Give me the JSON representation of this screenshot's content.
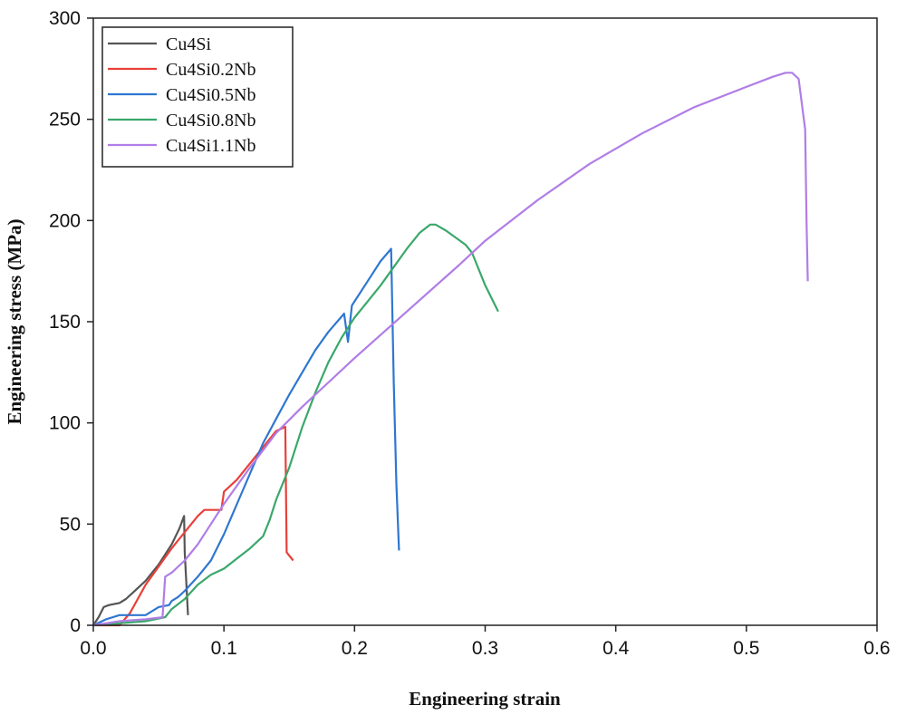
{
  "chart_data": {
    "type": "line",
    "xlabel": "Engineering strain",
    "ylabel": "Engineering stress (MPa)",
    "xlim": [
      0.0,
      0.6
    ],
    "ylim": [
      0,
      300
    ],
    "xticks": [
      "0.0",
      "0.1",
      "0.2",
      "0.3",
      "0.4",
      "0.5",
      "0.6"
    ],
    "yticks": [
      "0",
      "50",
      "100",
      "150",
      "200",
      "250",
      "300"
    ],
    "grid": false,
    "legend": "top-left",
    "series": [
      {
        "name": "Cu4Si",
        "color": "#555555",
        "points": [
          [
            0.0,
            0
          ],
          [
            0.004,
            4
          ],
          [
            0.008,
            9
          ],
          [
            0.012,
            10
          ],
          [
            0.02,
            11
          ],
          [
            0.025,
            13
          ],
          [
            0.03,
            16
          ],
          [
            0.04,
            22
          ],
          [
            0.05,
            30
          ],
          [
            0.06,
            40
          ],
          [
            0.066,
            48
          ],
          [
            0.0695,
            54
          ],
          [
            0.07,
            36
          ],
          [
            0.0725,
            5
          ]
        ]
      },
      {
        "name": "Cu4Si0.2Nb",
        "color": "#e8403a",
        "points": [
          [
            0.0,
            0
          ],
          [
            0.02,
            0
          ],
          [
            0.028,
            6
          ],
          [
            0.04,
            20
          ],
          [
            0.06,
            38
          ],
          [
            0.08,
            54
          ],
          [
            0.085,
            57
          ],
          [
            0.098,
            57
          ],
          [
            0.1,
            66
          ],
          [
            0.11,
            72
          ],
          [
            0.12,
            80
          ],
          [
            0.13,
            88
          ],
          [
            0.14,
            96
          ],
          [
            0.147,
            98
          ],
          [
            0.148,
            36
          ],
          [
            0.153,
            32
          ]
        ]
      },
      {
        "name": "Cu4Si0.5Nb",
        "color": "#2f77d0",
        "points": [
          [
            0.0,
            0
          ],
          [
            0.01,
            3
          ],
          [
            0.02,
            5
          ],
          [
            0.04,
            5
          ],
          [
            0.05,
            9
          ],
          [
            0.058,
            10
          ],
          [
            0.06,
            12
          ],
          [
            0.065,
            14
          ],
          [
            0.07,
            17
          ],
          [
            0.08,
            24
          ],
          [
            0.09,
            32
          ],
          [
            0.1,
            45
          ],
          [
            0.11,
            60
          ],
          [
            0.12,
            75
          ],
          [
            0.13,
            90
          ],
          [
            0.14,
            102
          ],
          [
            0.15,
            114
          ],
          [
            0.16,
            125
          ],
          [
            0.17,
            136
          ],
          [
            0.18,
            145
          ],
          [
            0.192,
            154
          ],
          [
            0.195,
            140
          ],
          [
            0.198,
            158
          ],
          [
            0.21,
            170
          ],
          [
            0.22,
            180
          ],
          [
            0.228,
            186
          ],
          [
            0.23,
            120
          ],
          [
            0.232,
            70
          ],
          [
            0.234,
            37
          ]
        ]
      },
      {
        "name": "Cu4Si0.8Nb",
        "color": "#3aa86b",
        "points": [
          [
            0.0,
            0
          ],
          [
            0.02,
            1
          ],
          [
            0.04,
            2
          ],
          [
            0.055,
            4
          ],
          [
            0.06,
            8
          ],
          [
            0.07,
            13
          ],
          [
            0.08,
            20
          ],
          [
            0.09,
            25
          ],
          [
            0.1,
            28
          ],
          [
            0.11,
            33
          ],
          [
            0.12,
            38
          ],
          [
            0.13,
            44
          ],
          [
            0.135,
            52
          ],
          [
            0.14,
            62
          ],
          [
            0.15,
            78
          ],
          [
            0.16,
            98
          ],
          [
            0.17,
            115
          ],
          [
            0.18,
            130
          ],
          [
            0.19,
            142
          ],
          [
            0.2,
            152
          ],
          [
            0.21,
            160
          ],
          [
            0.22,
            168
          ],
          [
            0.23,
            177
          ],
          [
            0.24,
            186
          ],
          [
            0.25,
            194
          ],
          [
            0.258,
            198
          ],
          [
            0.262,
            198
          ],
          [
            0.27,
            195
          ],
          [
            0.285,
            188
          ],
          [
            0.29,
            184
          ],
          [
            0.3,
            168
          ],
          [
            0.31,
            155
          ]
        ]
      },
      {
        "name": "Cu4Si1.1Nb",
        "color": "#b07de6",
        "points": [
          [
            0.0,
            0
          ],
          [
            0.02,
            2
          ],
          [
            0.04,
            3
          ],
          [
            0.053,
            4
          ],
          [
            0.055,
            24
          ],
          [
            0.06,
            26
          ],
          [
            0.07,
            32
          ],
          [
            0.08,
            40
          ],
          [
            0.09,
            50
          ],
          [
            0.1,
            60
          ],
          [
            0.12,
            78
          ],
          [
            0.14,
            95
          ],
          [
            0.16,
            108
          ],
          [
            0.18,
            120
          ],
          [
            0.2,
            132
          ],
          [
            0.24,
            155
          ],
          [
            0.28,
            178
          ],
          [
            0.3,
            190
          ],
          [
            0.34,
            210
          ],
          [
            0.38,
            228
          ],
          [
            0.42,
            243
          ],
          [
            0.46,
            256
          ],
          [
            0.5,
            266
          ],
          [
            0.52,
            271
          ],
          [
            0.53,
            273
          ],
          [
            0.535,
            273
          ],
          [
            0.54,
            270
          ],
          [
            0.545,
            245
          ],
          [
            0.546,
            200
          ],
          [
            0.547,
            170
          ]
        ]
      }
    ]
  }
}
